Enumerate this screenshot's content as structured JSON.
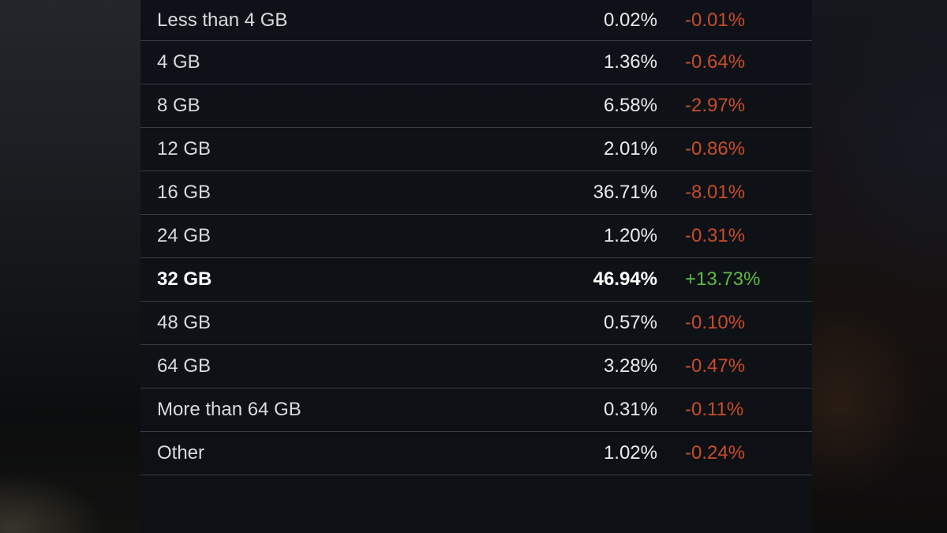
{
  "page": {
    "description": "Steam hardware survey style dark table listing system RAM amounts with usage share and monthly change"
  },
  "colors": {
    "positive": "#5ebb43",
    "negative": "#c94b29",
    "panel_bg": "#0e1116",
    "divider": "#3a3e44",
    "label_text": "#d9dbdd",
    "value_text": "#eaebec",
    "highlight_text": "#ffffff"
  },
  "table": {
    "rows": [
      {
        "label": "Less than 4 GB",
        "share": "0.02%",
        "change": "-0.01%",
        "direction": "negative",
        "bold": false
      },
      {
        "label": "4 GB",
        "share": "1.36%",
        "change": "-0.64%",
        "direction": "negative",
        "bold": false
      },
      {
        "label": "8 GB",
        "share": "6.58%",
        "change": "-2.97%",
        "direction": "negative",
        "bold": false
      },
      {
        "label": "12 GB",
        "share": "2.01%",
        "change": "-0.86%",
        "direction": "negative",
        "bold": false
      },
      {
        "label": "16 GB",
        "share": "36.71%",
        "change": "-8.01%",
        "direction": "negative",
        "bold": false
      },
      {
        "label": "24 GB",
        "share": "1.20%",
        "change": "-0.31%",
        "direction": "negative",
        "bold": false
      },
      {
        "label": "32 GB",
        "share": "46.94%",
        "change": "+13.73%",
        "direction": "positive",
        "bold": true
      },
      {
        "label": "48 GB",
        "share": "0.57%",
        "change": "-0.10%",
        "direction": "negative",
        "bold": false
      },
      {
        "label": "64 GB",
        "share": "3.28%",
        "change": "-0.47%",
        "direction": "negative",
        "bold": false
      },
      {
        "label": "More than 64 GB",
        "share": "0.31%",
        "change": "-0.11%",
        "direction": "negative",
        "bold": false
      },
      {
        "label": "Other",
        "share": "1.02%",
        "change": "-0.24%",
        "direction": "negative",
        "bold": false
      }
    ]
  },
  "chart_data": {
    "type": "table",
    "categories": [
      "Less than 4 GB",
      "4 GB",
      "8 GB",
      "12 GB",
      "16 GB",
      "24 GB",
      "32 GB",
      "48 GB",
      "64 GB",
      "More than 64 GB",
      "Other"
    ],
    "series": [
      {
        "name": "share_percent",
        "values": [
          0.02,
          1.36,
          6.58,
          2.01,
          36.71,
          1.2,
          46.94,
          0.57,
          3.28,
          0.31,
          1.02
        ]
      },
      {
        "name": "change_percent",
        "values": [
          -0.01,
          -0.64,
          -2.97,
          -0.86,
          -8.01,
          -0.31,
          13.73,
          -0.1,
          -0.47,
          -0.11,
          -0.24
        ]
      }
    ]
  }
}
